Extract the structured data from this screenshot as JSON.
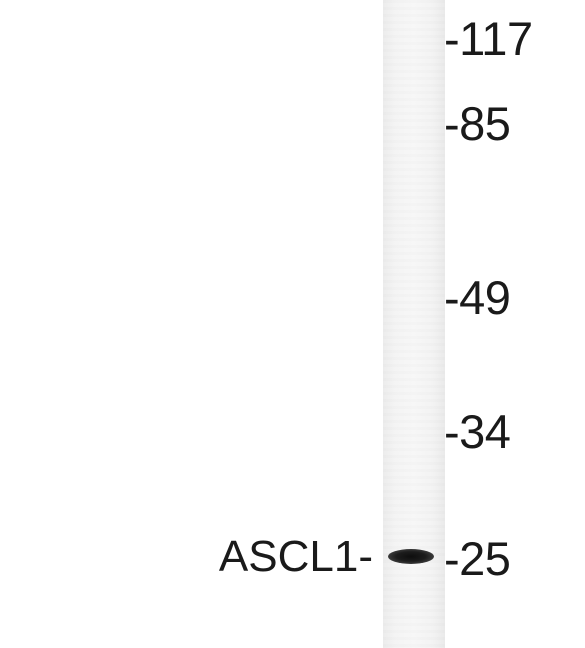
{
  "blot": {
    "protein_label": "ASCL1-",
    "band_color": "#111111",
    "lane_color": "#f4f4f4",
    "markers": [
      {
        "label": "-117"
      },
      {
        "label": "-85"
      },
      {
        "label": "-49"
      },
      {
        "label": "-34"
      },
      {
        "label": "-25"
      }
    ]
  }
}
